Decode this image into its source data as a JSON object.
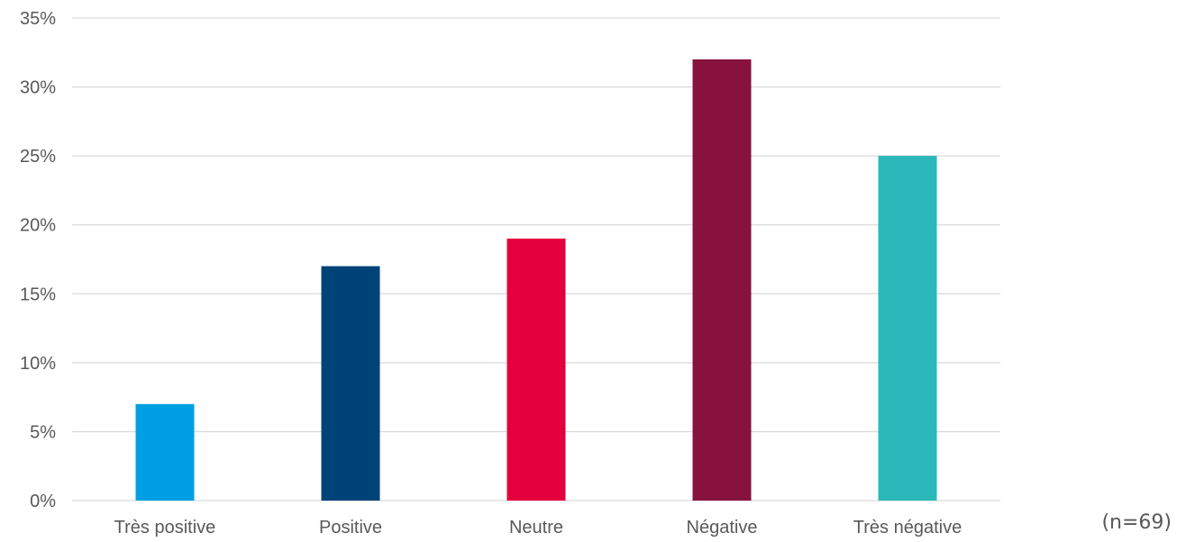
{
  "chart_data": {
    "type": "bar",
    "categories": [
      "Très positive",
      "Positive",
      "Neutre",
      "Négative",
      "Très négative"
    ],
    "values": [
      7,
      17,
      19,
      32,
      25
    ],
    "value_unit": "%",
    "ylim": [
      0,
      35
    ],
    "yticks": [
      "0%",
      "5%",
      "10%",
      "15%",
      "20%",
      "25%",
      "30%",
      "35%"
    ],
    "ytick_values": [
      0,
      5,
      10,
      15,
      20,
      25,
      30,
      35
    ],
    "colors": [
      "#009fe3",
      "#004378",
      "#e4003f",
      "#87123b",
      "#2bb8ba"
    ],
    "grid": true,
    "legend": "none",
    "title": "",
    "xlabel": "",
    "ylabel": ""
  },
  "note": "(n=69)"
}
